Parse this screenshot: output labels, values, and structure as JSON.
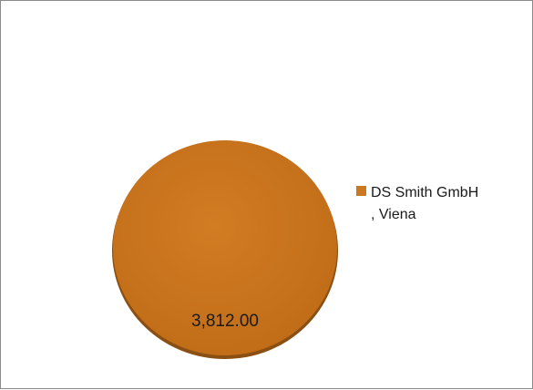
{
  "chart_data": {
    "type": "pie",
    "title": "",
    "categories": [
      "DS Smith GmbH\n, Viena"
    ],
    "values": [
      3812.0
    ],
    "data_labels": [
      "3,812.00"
    ],
    "colors": [
      "#cc7722"
    ],
    "legend": "right"
  }
}
